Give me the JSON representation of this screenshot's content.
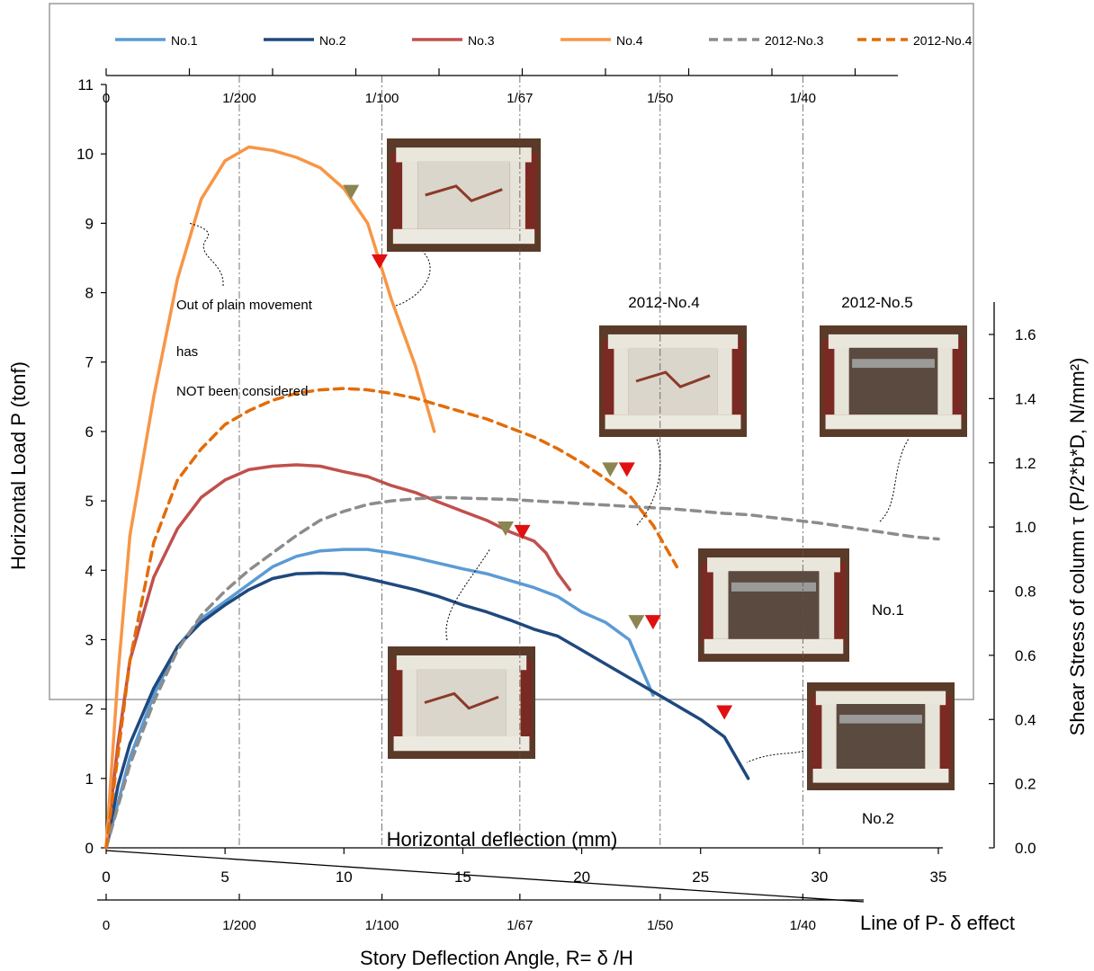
{
  "chart_data": {
    "type": "line",
    "xlabel": "Horizontal deflection (mm)",
    "ylabel": "Horizontal Load P (tonf)",
    "y2label": "Shear Stress of column   τ   (P/2*b*D, N/mm²)",
    "bottom_label": "Story Deflection Angle, R= δ /H",
    "pdelta_label": "Line of P- δ effect",
    "xlim": [
      0,
      35
    ],
    "ylim": [
      0,
      11
    ],
    "y2lim": [
      0,
      1.7
    ],
    "x_ticks": [
      "0",
      "5",
      "10",
      "15",
      "20",
      "25",
      "30",
      "35"
    ],
    "y_ticks": [
      "0",
      "1",
      "2",
      "3",
      "4",
      "5",
      "6",
      "7",
      "8",
      "9",
      "10",
      "11"
    ],
    "y2_ticks": [
      "0.0",
      "0.2",
      "0.4",
      "0.6",
      "0.8",
      "1.0",
      "1.2",
      "1.4",
      "1.6"
    ],
    "angle_ticks": [
      {
        "label": "0",
        "x": 0
      },
      {
        "label": "1/200",
        "x": 5.6
      },
      {
        "label": "1/100",
        "x": 11.6
      },
      {
        "label": "1/67",
        "x": 17.4
      },
      {
        "label": "1/50",
        "x": 23.3
      },
      {
        "label": "1/40",
        "x": 29.3
      }
    ],
    "grid": false,
    "legend_position": "top",
    "series": [
      {
        "name": "No.1",
        "color": "#5b9bd5",
        "dashed": false,
        "points": [
          [
            0,
            0
          ],
          [
            1,
            1.3
          ],
          [
            2,
            2.2
          ],
          [
            3,
            2.9
          ],
          [
            4,
            3.3
          ],
          [
            5,
            3.55
          ],
          [
            6,
            3.8
          ],
          [
            7,
            4.05
          ],
          [
            8,
            4.2
          ],
          [
            9,
            4.28
          ],
          [
            10,
            4.3
          ],
          [
            11,
            4.3
          ],
          [
            12,
            4.25
          ],
          [
            13,
            4.18
          ],
          [
            14,
            4.1
          ],
          [
            15,
            4.02
          ],
          [
            16,
            3.95
          ],
          [
            17,
            3.85
          ],
          [
            18,
            3.75
          ],
          [
            19,
            3.62
          ],
          [
            20,
            3.4
          ],
          [
            21,
            3.25
          ],
          [
            22,
            3.0
          ],
          [
            23,
            2.2
          ]
        ]
      },
      {
        "name": "No.2",
        "color": "#1f497d",
        "dashed": false,
        "points": [
          [
            0,
            0
          ],
          [
            0.5,
            0.9
          ],
          [
            1,
            1.5
          ],
          [
            2,
            2.3
          ],
          [
            3,
            2.9
          ],
          [
            4,
            3.25
          ],
          [
            5,
            3.5
          ],
          [
            6,
            3.72
          ],
          [
            7,
            3.88
          ],
          [
            8,
            3.95
          ],
          [
            9,
            3.96
          ],
          [
            10,
            3.95
          ],
          [
            11,
            3.88
          ],
          [
            12,
            3.8
          ],
          [
            13,
            3.72
          ],
          [
            14,
            3.62
          ],
          [
            15,
            3.5
          ],
          [
            16,
            3.4
          ],
          [
            17,
            3.28
          ],
          [
            18,
            3.15
          ],
          [
            19,
            3.05
          ],
          [
            20,
            2.85
          ],
          [
            21,
            2.65
          ],
          [
            22,
            2.45
          ],
          [
            23,
            2.25
          ],
          [
            24,
            2.05
          ],
          [
            25,
            1.85
          ],
          [
            26,
            1.6
          ],
          [
            27,
            1.0
          ]
        ]
      },
      {
        "name": "No.3",
        "color": "#c0504d",
        "dashed": false,
        "points": [
          [
            0,
            0
          ],
          [
            0.5,
            1.5
          ],
          [
            1,
            2.7
          ],
          [
            2,
            3.9
          ],
          [
            3,
            4.6
          ],
          [
            4,
            5.05
          ],
          [
            5,
            5.3
          ],
          [
            6,
            5.45
          ],
          [
            7,
            5.5
          ],
          [
            8,
            5.52
          ],
          [
            9,
            5.5
          ],
          [
            10,
            5.42
          ],
          [
            11,
            5.35
          ],
          [
            12,
            5.22
          ],
          [
            13,
            5.12
          ],
          [
            14,
            4.98
          ],
          [
            15,
            4.85
          ],
          [
            16,
            4.72
          ],
          [
            17,
            4.55
          ],
          [
            18,
            4.42
          ],
          [
            18.5,
            4.25
          ],
          [
            19,
            3.95
          ],
          [
            19.5,
            3.72
          ]
        ]
      },
      {
        "name": "No.4",
        "color": "#f79646",
        "dashed": false,
        "points": [
          [
            0,
            0
          ],
          [
            0.5,
            2.5
          ],
          [
            1,
            4.5
          ],
          [
            2,
            6.5
          ],
          [
            3,
            8.2
          ],
          [
            4,
            9.35
          ],
          [
            5,
            9.9
          ],
          [
            6,
            10.1
          ],
          [
            7,
            10.05
          ],
          [
            8,
            9.95
          ],
          [
            9,
            9.8
          ],
          [
            10,
            9.5
          ],
          [
            11,
            9.0
          ],
          [
            12,
            7.9
          ],
          [
            13,
            6.95
          ],
          [
            13.8,
            6.0
          ]
        ]
      },
      {
        "name": "2012-No.3",
        "color": "#8c8c8c",
        "dashed": true,
        "points": [
          [
            0,
            0
          ],
          [
            1,
            1.2
          ],
          [
            2,
            2.1
          ],
          [
            3,
            2.85
          ],
          [
            4,
            3.35
          ],
          [
            5,
            3.7
          ],
          [
            6,
            4.0
          ],
          [
            7,
            4.25
          ],
          [
            8,
            4.5
          ],
          [
            9,
            4.72
          ],
          [
            10,
            4.85
          ],
          [
            11,
            4.95
          ],
          [
            12,
            5.0
          ],
          [
            13,
            5.03
          ],
          [
            14,
            5.05
          ],
          [
            15,
            5.04
          ],
          [
            16,
            5.03
          ],
          [
            17,
            5.02
          ],
          [
            18,
            5.0
          ],
          [
            19,
            4.98
          ],
          [
            20,
            4.96
          ],
          [
            21,
            4.94
          ],
          [
            22,
            4.92
          ],
          [
            23,
            4.9
          ],
          [
            24,
            4.88
          ],
          [
            25,
            4.85
          ],
          [
            26,
            4.82
          ],
          [
            27,
            4.8
          ],
          [
            28,
            4.76
          ],
          [
            29,
            4.72
          ],
          [
            30,
            4.68
          ],
          [
            31,
            4.63
          ],
          [
            32,
            4.58
          ],
          [
            33,
            4.53
          ],
          [
            34,
            4.48
          ],
          [
            35,
            4.45
          ]
        ]
      },
      {
        "name": "2012-No.4",
        "color": "#e36c09",
        "dashed": true,
        "points": [
          [
            0,
            0
          ],
          [
            1,
            2.7
          ],
          [
            2,
            4.4
          ],
          [
            3,
            5.3
          ],
          [
            4,
            5.75
          ],
          [
            5,
            6.1
          ],
          [
            6,
            6.3
          ],
          [
            7,
            6.45
          ],
          [
            8,
            6.55
          ],
          [
            9,
            6.6
          ],
          [
            10,
            6.62
          ],
          [
            11,
            6.6
          ],
          [
            12,
            6.55
          ],
          [
            13,
            6.48
          ],
          [
            14,
            6.38
          ],
          [
            15,
            6.28
          ],
          [
            16,
            6.18
          ],
          [
            17,
            6.05
          ],
          [
            18,
            5.92
          ],
          [
            19,
            5.75
          ],
          [
            20,
            5.55
          ],
          [
            21,
            5.32
          ],
          [
            22,
            5.08
          ],
          [
            23,
            4.65
          ],
          [
            24,
            4.05
          ]
        ]
      }
    ],
    "markers": [
      {
        "color": "#8b8552",
        "x": 10.3,
        "y": 9.45
      },
      {
        "color": "#e01010",
        "x": 11.5,
        "y": 8.45
      },
      {
        "color": "#8b8552",
        "x": 21.2,
        "y": 5.45
      },
      {
        "color": "#e01010",
        "x": 21.9,
        "y": 5.45
      },
      {
        "color": "#8b8552",
        "x": 16.8,
        "y": 4.6
      },
      {
        "color": "#e01010",
        "x": 17.5,
        "y": 4.55
      },
      {
        "color": "#8b8552",
        "x": 22.3,
        "y": 3.25
      },
      {
        "color": "#e01010",
        "x": 23.0,
        "y": 3.25
      },
      {
        "color": "#e01010",
        "x": 26.0,
        "y": 1.95
      }
    ],
    "annotations": {
      "out_of_plain": [
        "Out   of   plain   movement",
        "has",
        "NOT been considered"
      ],
      "label_2012_no4": "2012-No.4",
      "label_2012_no5": "2012-No.5",
      "label_no1": "No.1",
      "label_no2": "No.2"
    }
  }
}
